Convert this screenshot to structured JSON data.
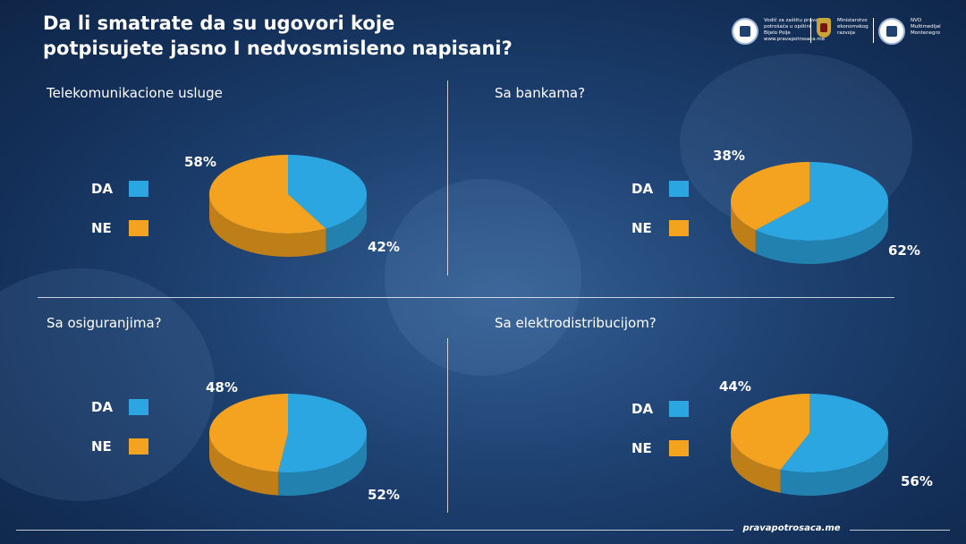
{
  "title": {
    "line1": "Da li smatrate da su ugovori koje",
    "line2": "potpisujete jasno I nedvosmisleno napisani?"
  },
  "logos": {
    "vodic": {
      "icon": "scales-icon",
      "l1": "Vodič za zaštitu prava",
      "l2": "potrošača u opštini",
      "l3": "Bijelo Polje",
      "l4": "www.pravapotrosaca.me"
    },
    "ministarstvo": {
      "icon": "coat-of-arms-icon",
      "l1": "Ministarstvo",
      "l2": "ekonomskog",
      "l3": "razvoja"
    },
    "nvo": {
      "icon": "nvo-logo-icon",
      "l1": "NVO",
      "l2": "Multimedijal",
      "l3": "Montenegro"
    }
  },
  "colors": {
    "da": "#2ba6e0",
    "ne": "#f4a320"
  },
  "legend": {
    "da": "DA",
    "ne": "NE"
  },
  "footer": {
    "site": "pravapotrosaca.me"
  },
  "chart_data": [
    {
      "type": "pie",
      "title": "Telekomunikacione usluge",
      "categories": [
        "DA",
        "NE"
      ],
      "values": [
        42,
        58
      ],
      "labels": [
        "42%",
        "58%"
      ]
    },
    {
      "type": "pie",
      "title": "Sa bankama?",
      "categories": [
        "DA",
        "NE"
      ],
      "values": [
        62,
        38
      ],
      "labels": [
        "62%",
        "38%"
      ]
    },
    {
      "type": "pie",
      "title": "Sa osiguranjima?",
      "categories": [
        "DA",
        "NE"
      ],
      "values": [
        52,
        48
      ],
      "labels": [
        "52%",
        "48%"
      ]
    },
    {
      "type": "pie",
      "title": "Sa elektrodistribucijom?",
      "categories": [
        "DA",
        "NE"
      ],
      "values": [
        56,
        44
      ],
      "labels": [
        "56%",
        "44%"
      ]
    }
  ]
}
